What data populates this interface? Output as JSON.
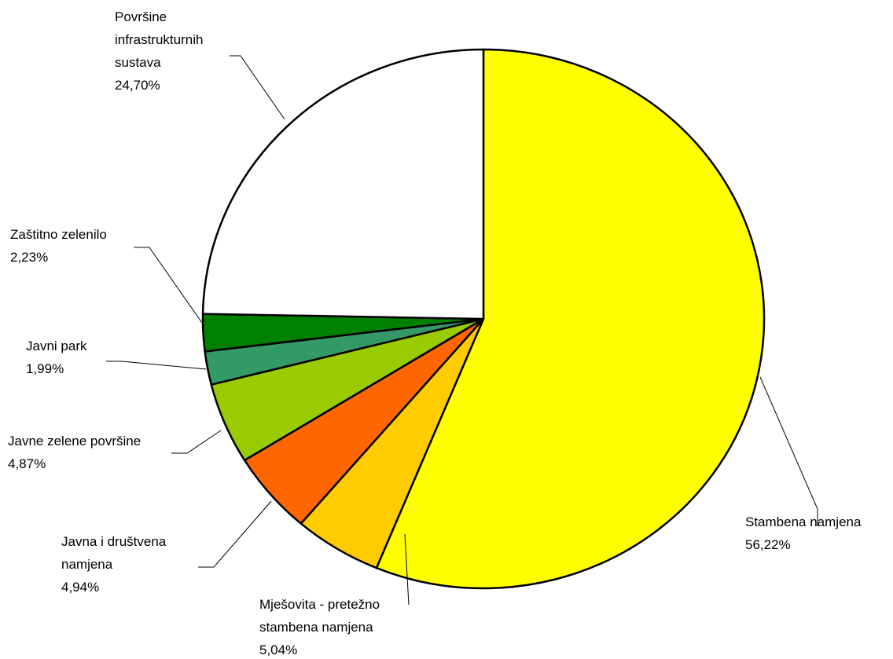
{
  "chart_data": {
    "type": "pie",
    "slices": [
      {
        "name": "Stambena namjena",
        "value": 56.22,
        "label": "56,22%",
        "color": "#FFFF00",
        "label_lines": [
          "Stambena namjena",
          "56,22%"
        ]
      },
      {
        "name": "Mješovita - pretežno stambena namjena",
        "value": 5.04,
        "label": "5,04%",
        "color": "#FFCC00",
        "label_lines": [
          "Mješovita - pretežno",
          "stambena namjena",
          "5,04%"
        ]
      },
      {
        "name": "Javna i društvena namjena",
        "value": 4.94,
        "label": "4,94%",
        "color": "#FF6600",
        "label_lines": [
          "Javna i društvena",
          "namjena",
          "4,94%"
        ]
      },
      {
        "name": "Javne zelene površine",
        "value": 4.87,
        "label": "4,87%",
        "color": "#99CC00",
        "label_lines": [
          "Javne zelene površine",
          "4,87%"
        ]
      },
      {
        "name": "Javni park",
        "value": 1.99,
        "label": "1,99%",
        "color": "#339966",
        "label_lines": [
          "Javni park",
          "1,99%"
        ]
      },
      {
        "name": "Zaštitno zelenilo",
        "value": 2.23,
        "label": "2,23%",
        "color": "#008000",
        "label_lines": [
          "Zaštitno zelenilo",
          "2,23%"
        ]
      },
      {
        "name": "Površine infrastrukturnih sustava",
        "value": 24.7,
        "label": "24,70%",
        "color": "#FFFFFF",
        "label_lines": [
          "Površine",
          "infrastrukturnih",
          "sustava",
          "24,70%"
        ]
      }
    ]
  }
}
